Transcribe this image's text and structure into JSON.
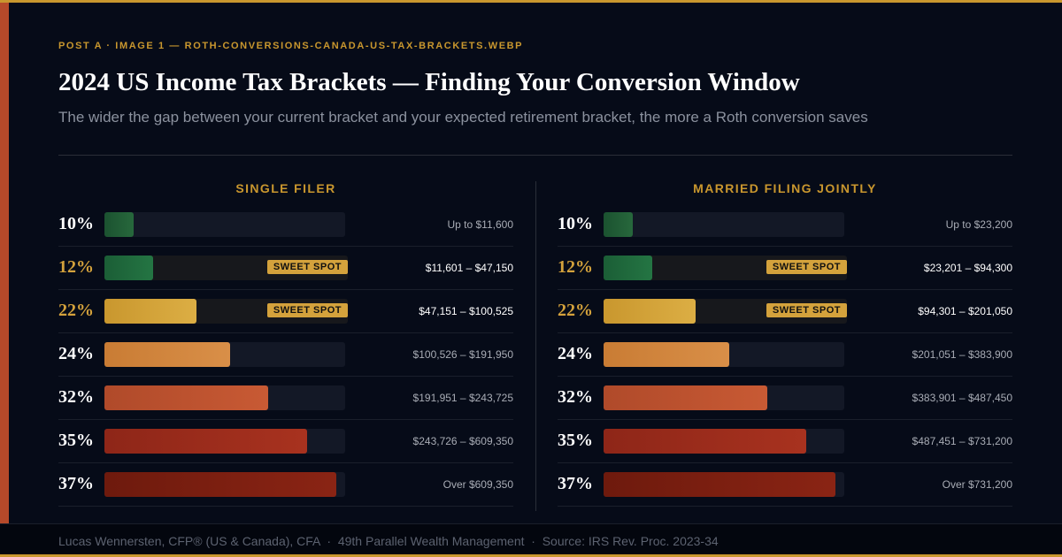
{
  "header": {
    "eyebrow": "POST A · IMAGE 1 — ROTH-CONVERSIONS-CANADA-US-TAX-BRACKETS.WEBP",
    "title": "2024 US Income Tax Brackets — Finding Your Conversion Window",
    "subtitle": "The wider the gap between your current bracket and your expected retirement bracket, the more a Roth conversion saves"
  },
  "columns": [
    {
      "heading": "SINGLE FILER",
      "rows": [
        {
          "rate": "10%",
          "range": "Up to $11,600"
        },
        {
          "rate": "12%",
          "range": "$11,601 – $47,150",
          "badge": "SWEET SPOT"
        },
        {
          "rate": "22%",
          "range": "$47,151 – $100,525",
          "badge": "SWEET SPOT"
        },
        {
          "rate": "24%",
          "range": "$100,526 – $191,950"
        },
        {
          "rate": "32%",
          "range": "$191,951 – $243,725"
        },
        {
          "rate": "35%",
          "range": "$243,726 – $609,350"
        },
        {
          "rate": "37%",
          "range": "Over $609,350"
        }
      ]
    },
    {
      "heading": "MARRIED FILING JOINTLY",
      "rows": [
        {
          "rate": "10%",
          "range": "Up to $23,200"
        },
        {
          "rate": "12%",
          "range": "$23,201 – $94,300",
          "badge": "SWEET SPOT"
        },
        {
          "rate": "22%",
          "range": "$94,301 – $201,050",
          "badge": "SWEET SPOT"
        },
        {
          "rate": "24%",
          "range": "$201,051 – $383,900"
        },
        {
          "rate": "32%",
          "range": "$383,901 – $487,450"
        },
        {
          "rate": "35%",
          "range": "$487,451 – $731,200"
        },
        {
          "rate": "37%",
          "range": "Over $731,200"
        }
      ]
    }
  ],
  "footer": "Lucas Wennersten, CFP® (US & Canada), CFA  ·  49th Parallel Wealth Management  ·  Source: IRS Rev. Proc. 2023-34"
}
